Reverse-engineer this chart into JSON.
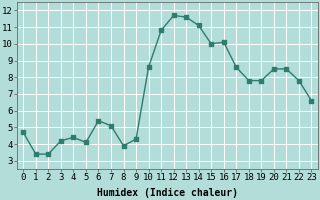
{
  "x": [
    0,
    1,
    2,
    3,
    4,
    5,
    6,
    7,
    8,
    9,
    10,
    11,
    12,
    13,
    14,
    15,
    16,
    17,
    18,
    19,
    20,
    21,
    22,
    23
  ],
  "y": [
    4.7,
    3.4,
    3.4,
    4.2,
    4.4,
    4.1,
    5.4,
    5.1,
    3.9,
    4.3,
    8.6,
    10.8,
    11.7,
    11.6,
    11.1,
    10.0,
    10.1,
    8.6,
    7.8,
    7.8,
    8.5,
    8.5,
    7.8,
    6.6
  ],
  "line_color": "#2e7d6e",
  "marker_color": "#2e7d6e",
  "bg_color": "#b2ddd8",
  "grid_color": "#ffffff",
  "xlabel": "Humidex (Indice chaleur)",
  "ylim": [
    2.5,
    12.5
  ],
  "xlim": [
    -0.5,
    23.5
  ],
  "yticks": [
    3,
    4,
    5,
    6,
    7,
    8,
    9,
    10,
    11,
    12
  ],
  "xticks": [
    0,
    1,
    2,
    3,
    4,
    5,
    6,
    7,
    8,
    9,
    10,
    11,
    12,
    13,
    14,
    15,
    16,
    17,
    18,
    19,
    20,
    21,
    22,
    23
  ],
  "xlabel_fontsize": 7,
  "tick_fontsize": 6.5,
  "linewidth": 1.0,
  "markersize": 2.5
}
